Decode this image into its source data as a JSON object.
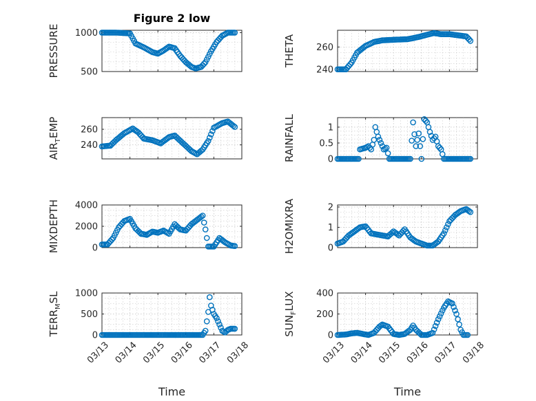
{
  "chart_data": [
    {
      "type": "scatter",
      "title": "Figure 2 low",
      "ylabel_main": "PRESSURE",
      "ylabel_sub": "",
      "ylabel_tail": "",
      "xlabel": "",
      "ylim": [
        500,
        1030
      ],
      "yticks": [
        500,
        1000
      ],
      "xlim": [
        0,
        5
      ],
      "xticks": [
        0,
        1,
        2,
        3,
        4,
        5
      ],
      "xticklabels": [],
      "anchors": [
        [
          0,
          1000
        ],
        [
          0.5,
          1000
        ],
        [
          1.0,
          990
        ],
        [
          1.2,
          860
        ],
        [
          1.5,
          810
        ],
        [
          1.8,
          750
        ],
        [
          2.0,
          730
        ],
        [
          2.2,
          770
        ],
        [
          2.4,
          820
        ],
        [
          2.6,
          800
        ],
        [
          2.8,
          700
        ],
        [
          3.0,
          620
        ],
        [
          3.2,
          560
        ],
        [
          3.35,
          540
        ],
        [
          3.55,
          560
        ],
        [
          3.7,
          620
        ],
        [
          3.9,
          760
        ],
        [
          4.1,
          880
        ],
        [
          4.3,
          960
        ],
        [
          4.5,
          1000
        ],
        [
          4.75,
          1000
        ]
      ]
    },
    {
      "type": "scatter",
      "title": "",
      "ylabel_main": "THETA",
      "ylabel_sub": "",
      "ylabel_tail": "",
      "xlabel": "",
      "ylim": [
        238,
        275
      ],
      "yticks": [
        240,
        260
      ],
      "xlim": [
        0,
        5
      ],
      "xticks": [
        0,
        1,
        2,
        3,
        4,
        5
      ],
      "xticklabels": [],
      "anchors": [
        [
          0,
          240
        ],
        [
          0.3,
          240
        ],
        [
          0.5,
          246
        ],
        [
          0.7,
          255
        ],
        [
          1.0,
          261
        ],
        [
          1.3,
          264.5
        ],
        [
          1.6,
          266
        ],
        [
          2.0,
          266.5
        ],
        [
          2.5,
          267
        ],
        [
          2.9,
          269
        ],
        [
          3.2,
          271
        ],
        [
          3.45,
          272.5
        ],
        [
          3.7,
          271.5
        ],
        [
          4.0,
          271.5
        ],
        [
          4.3,
          270.5
        ],
        [
          4.6,
          269.5
        ],
        [
          4.75,
          265.5
        ]
      ]
    },
    {
      "type": "scatter",
      "title": "",
      "ylabel_main": "AIR",
      "ylabel_sub": "T",
      "ylabel_tail": "EMP",
      "xlabel": "",
      "ylim": [
        222,
        275
      ],
      "yticks": [
        240,
        260
      ],
      "xlim": [
        0,
        5
      ],
      "xticks": [
        0,
        1,
        2,
        3,
        4,
        5
      ],
      "xticklabels": [],
      "anchors": [
        [
          0,
          238
        ],
        [
          0.3,
          239
        ],
        [
          0.5,
          246
        ],
        [
          0.8,
          255
        ],
        [
          1.1,
          261
        ],
        [
          1.3,
          256
        ],
        [
          1.5,
          248
        ],
        [
          1.8,
          246
        ],
        [
          2.1,
          242
        ],
        [
          2.4,
          250
        ],
        [
          2.6,
          252
        ],
        [
          2.9,
          242
        ],
        [
          3.2,
          232
        ],
        [
          3.4,
          228
        ],
        [
          3.6,
          234
        ],
        [
          3.8,
          245
        ],
        [
          4.0,
          262
        ],
        [
          4.3,
          268
        ],
        [
          4.5,
          270
        ],
        [
          4.75,
          263
        ]
      ]
    },
    {
      "type": "scatter",
      "title": "",
      "ylabel_main": "RAINFALL",
      "ylabel_sub": "",
      "ylabel_tail": "",
      "xlabel": "",
      "ylim": [
        0,
        1.3
      ],
      "yticks": [
        0,
        0.5,
        1
      ],
      "xlim": [
        0,
        5
      ],
      "xticks": [
        0,
        1,
        2,
        3,
        4,
        5
      ],
      "xticklabels": [],
      "anchors": [
        [
          0,
          0
        ],
        [
          0.75,
          0
        ],
        [
          0.8,
          0.3
        ],
        [
          1.0,
          0.35
        ],
        [
          1.1,
          0.4
        ],
        [
          1.2,
          0.3
        ],
        [
          1.3,
          0.6
        ],
        [
          1.35,
          1.0
        ],
        [
          1.45,
          0.7
        ],
        [
          1.55,
          0.5
        ],
        [
          1.65,
          0.3
        ],
        [
          1.75,
          0.35
        ],
        [
          1.85,
          0
        ],
        [
          2.6,
          0
        ],
        [
          2.7,
          1.15
        ],
        [
          2.8,
          0.4
        ],
        [
          2.9,
          0.8
        ],
        [
          3.0,
          0
        ],
        [
          3.1,
          1.25
        ],
        [
          3.2,
          1.15
        ],
        [
          3.3,
          0.85
        ],
        [
          3.4,
          0.6
        ],
        [
          3.5,
          0.7
        ],
        [
          3.6,
          0.4
        ],
        [
          3.7,
          0.3
        ],
        [
          3.8,
          0
        ],
        [
          4.75,
          0
        ]
      ]
    },
    {
      "type": "scatter",
      "title": "",
      "ylabel_main": "MIXDEPTH",
      "ylabel_sub": "",
      "ylabel_tail": "",
      "xlabel": "",
      "ylim": [
        0,
        4000
      ],
      "yticks": [
        0,
        2000,
        4000
      ],
      "xlim": [
        0,
        5
      ],
      "xticks": [
        0,
        1,
        2,
        3,
        4,
        5
      ],
      "xticklabels": [],
      "anchors": [
        [
          0,
          300
        ],
        [
          0.2,
          300
        ],
        [
          0.4,
          900
        ],
        [
          0.6,
          1900
        ],
        [
          0.8,
          2500
        ],
        [
          1.0,
          2700
        ],
        [
          1.2,
          1800
        ],
        [
          1.4,
          1300
        ],
        [
          1.6,
          1200
        ],
        [
          1.8,
          1500
        ],
        [
          2.0,
          1400
        ],
        [
          2.2,
          1600
        ],
        [
          2.4,
          1300
        ],
        [
          2.6,
          2200
        ],
        [
          2.8,
          1700
        ],
        [
          3.0,
          1600
        ],
        [
          3.2,
          2200
        ],
        [
          3.4,
          2600
        ],
        [
          3.6,
          3000
        ],
        [
          3.7,
          1700
        ],
        [
          3.8,
          100
        ],
        [
          4.0,
          100
        ],
        [
          4.2,
          900
        ],
        [
          4.4,
          500
        ],
        [
          4.6,
          200
        ],
        [
          4.75,
          150
        ]
      ]
    },
    {
      "type": "scatter",
      "title": "",
      "ylabel_main": "H2OMIXRA",
      "ylabel_sub": "",
      "ylabel_tail": "",
      "xlabel": "",
      "ylim": [
        0,
        2.1
      ],
      "yticks": [
        0,
        1,
        2
      ],
      "xlim": [
        0,
        5
      ],
      "xticks": [
        0,
        1,
        2,
        3,
        4,
        5
      ],
      "xticklabels": [],
      "anchors": [
        [
          0,
          0.2
        ],
        [
          0.2,
          0.3
        ],
        [
          0.4,
          0.6
        ],
        [
          0.6,
          0.8
        ],
        [
          0.8,
          1.0
        ],
        [
          1.0,
          1.05
        ],
        [
          1.2,
          0.7
        ],
        [
          1.4,
          0.65
        ],
        [
          1.6,
          0.6
        ],
        [
          1.8,
          0.55
        ],
        [
          2.0,
          0.8
        ],
        [
          2.2,
          0.6
        ],
        [
          2.4,
          0.9
        ],
        [
          2.6,
          0.5
        ],
        [
          2.8,
          0.3
        ],
        [
          3.0,
          0.2
        ],
        [
          3.2,
          0.1
        ],
        [
          3.4,
          0.1
        ],
        [
          3.6,
          0.3
        ],
        [
          3.8,
          0.7
        ],
        [
          4.0,
          1.3
        ],
        [
          4.2,
          1.6
        ],
        [
          4.4,
          1.8
        ],
        [
          4.6,
          1.9
        ],
        [
          4.75,
          1.75
        ]
      ]
    },
    {
      "type": "scatter",
      "title": "",
      "ylabel_main": "TERR",
      "ylabel_sub": "M",
      "ylabel_tail": "SL",
      "xlabel": "Time",
      "ylim": [
        0,
        1000
      ],
      "yticks": [
        0,
        500,
        1000
      ],
      "xlim": [
        0,
        5
      ],
      "xticks": [
        0,
        1,
        2,
        3,
        4,
        5
      ],
      "xticklabels": [
        "03/13",
        "03/14",
        "03/15",
        "03/16",
        "03/17",
        "03/18"
      ],
      "anchors": [
        [
          0,
          0
        ],
        [
          3.6,
          0
        ],
        [
          3.7,
          100
        ],
        [
          3.8,
          550
        ],
        [
          3.85,
          900
        ],
        [
          3.9,
          700
        ],
        [
          4.0,
          500
        ],
        [
          4.1,
          400
        ],
        [
          4.2,
          250
        ],
        [
          4.3,
          100
        ],
        [
          4.4,
          60
        ],
        [
          4.5,
          120
        ],
        [
          4.6,
          150
        ],
        [
          4.75,
          150
        ]
      ]
    },
    {
      "type": "scatter",
      "title": "",
      "ylabel_main": "SUN",
      "ylabel_sub": "F",
      "ylabel_tail": "LUX",
      "xlabel": "Time",
      "ylim": [
        0,
        400
      ],
      "yticks": [
        0,
        200,
        400
      ],
      "xlim": [
        0,
        5
      ],
      "xticks": [
        0,
        1,
        2,
        3,
        4,
        5
      ],
      "xticklabels": [
        "03/13",
        "03/14",
        "03/15",
        "03/16",
        "03/17",
        "03/18"
      ],
      "anchors": [
        [
          0,
          0
        ],
        [
          0.3,
          5
        ],
        [
          0.5,
          15
        ],
        [
          0.7,
          20
        ],
        [
          0.9,
          10
        ],
        [
          1.1,
          0
        ],
        [
          1.3,
          20
        ],
        [
          1.5,
          80
        ],
        [
          1.6,
          100
        ],
        [
          1.8,
          80
        ],
        [
          2.0,
          10
        ],
        [
          2.2,
          0
        ],
        [
          2.4,
          10
        ],
        [
          2.6,
          50
        ],
        [
          2.7,
          90
        ],
        [
          2.8,
          50
        ],
        [
          3.0,
          0
        ],
        [
          3.2,
          0
        ],
        [
          3.4,
          20
        ],
        [
          3.6,
          150
        ],
        [
          3.8,
          260
        ],
        [
          3.95,
          320
        ],
        [
          4.1,
          300
        ],
        [
          4.25,
          200
        ],
        [
          4.4,
          50
        ],
        [
          4.5,
          0
        ],
        [
          4.65,
          0
        ]
      ]
    }
  ]
}
